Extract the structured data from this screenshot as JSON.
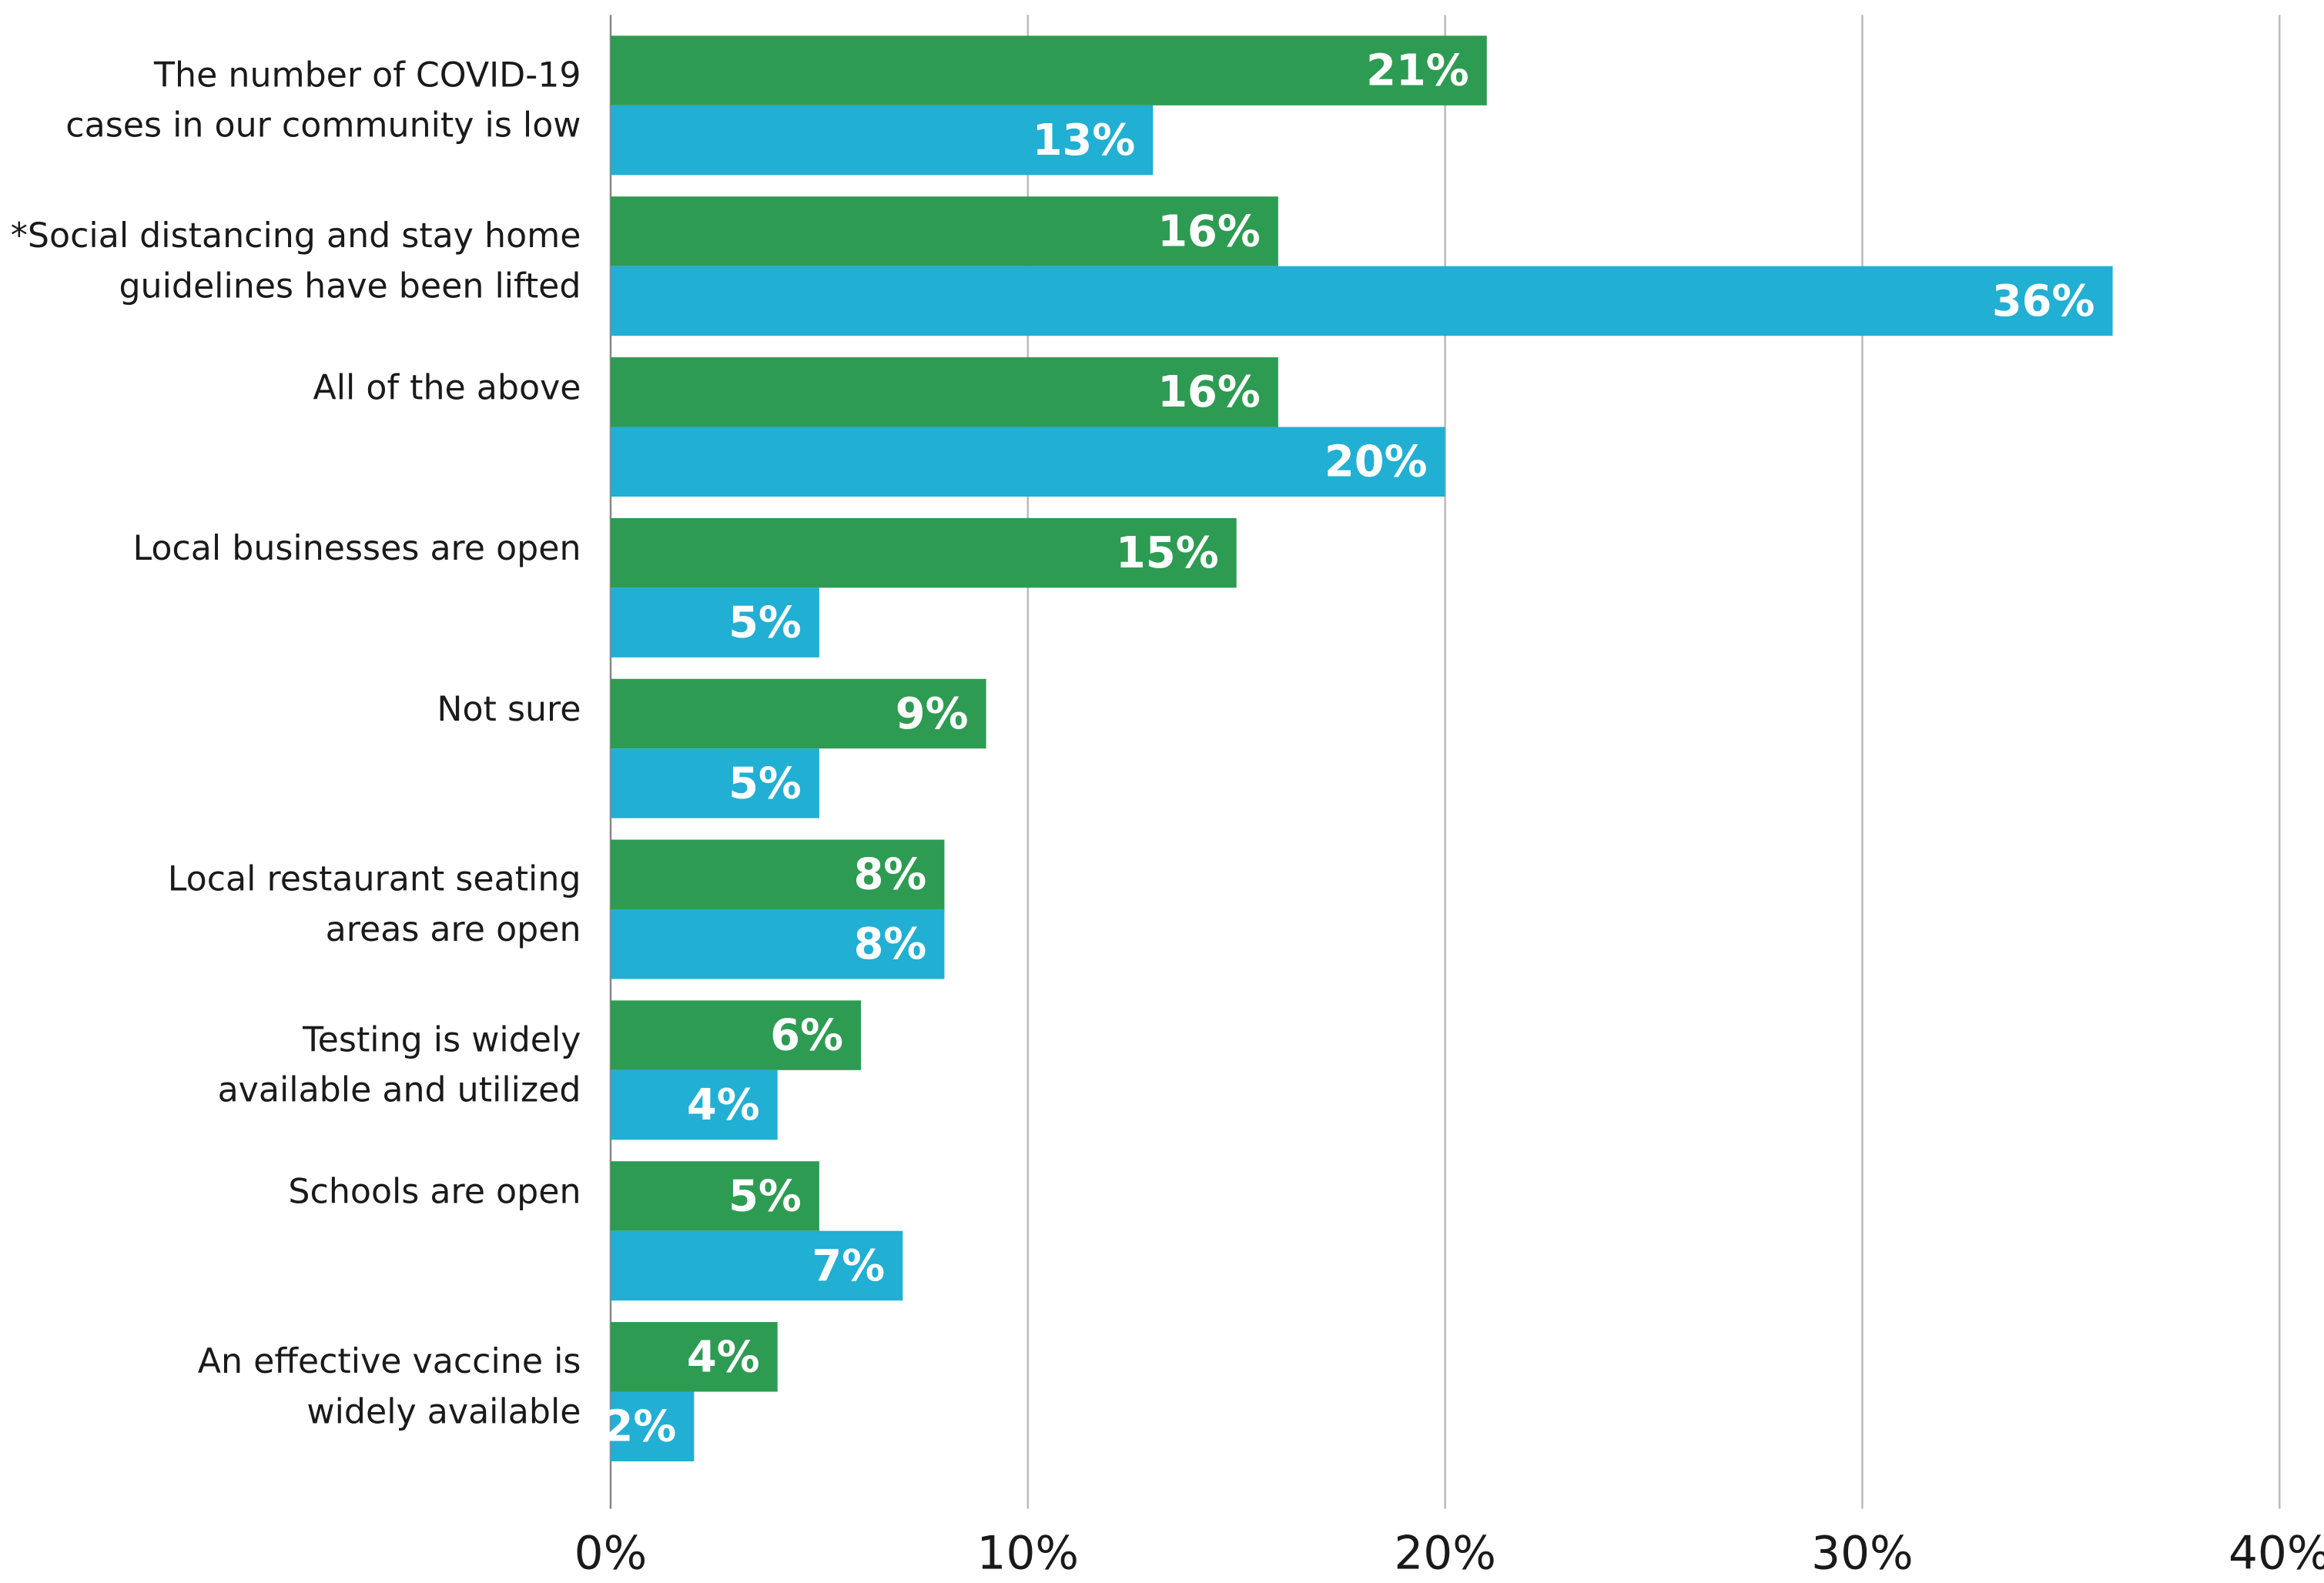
{
  "chart_data": {
    "type": "bar",
    "orientation": "horizontal",
    "categories": [
      [
        "The number of COVID-19",
        "cases in our community is low"
      ],
      [
        "*Social distancing and stay home",
        "guidelines have been lifted"
      ],
      [
        "All of the above"
      ],
      [
        "Local businesses are open"
      ],
      [
        "Not sure"
      ],
      [
        "Local restaurant seating",
        "areas are open"
      ],
      [
        "Testing is widely",
        "available and utilized"
      ],
      [
        "Schools are open"
      ],
      [
        "An effective vaccine is",
        "widely available"
      ]
    ],
    "series": [
      {
        "color": "#2e9b52",
        "values": [
          21,
          16,
          16,
          15,
          9,
          8,
          6,
          5,
          4
        ],
        "value_labels": [
          "21%",
          "16%",
          "16%",
          "15%",
          "9%",
          "8%",
          "6%",
          "5%",
          "4%"
        ]
      },
      {
        "color": "#21afd3",
        "values": [
          13,
          36,
          20,
          5,
          5,
          8,
          4,
          7,
          2
        ],
        "value_labels": [
          "13%",
          "36%",
          "20%",
          "5%",
          "5%",
          "8%",
          "4%",
          "7%",
          "2%"
        ]
      }
    ],
    "xlim": [
      0,
      40
    ],
    "xticks": [
      {
        "value": 0,
        "label": "0%"
      },
      {
        "value": 10,
        "label": "10%"
      },
      {
        "value": 20,
        "label": "20%"
      },
      {
        "value": 30,
        "label": "30%"
      },
      {
        "value": 40,
        "label": "40%"
      }
    ],
    "grid": true
  }
}
